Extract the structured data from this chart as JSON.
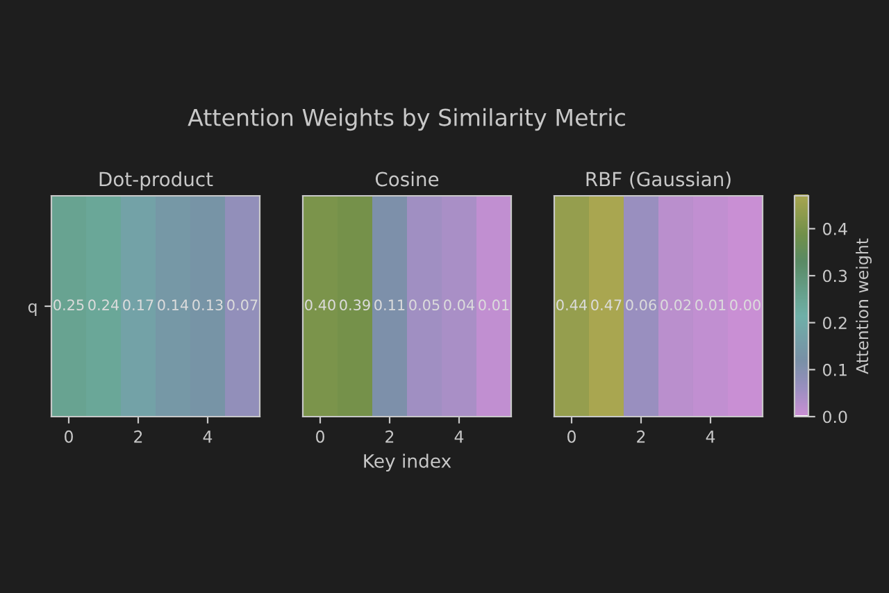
{
  "chart_data": [
    {
      "type": "heatmap",
      "subtitle": "Dot-product",
      "categories": [
        "0",
        null,
        "2",
        null,
        "4",
        null
      ],
      "y_categories": [
        "q"
      ],
      "cells": [
        [
          0.25,
          0.24,
          0.17,
          0.14,
          0.13,
          0.07
        ]
      ],
      "cell_labels": [
        [
          "0.25",
          "0.24",
          "0.17",
          "0.14",
          "0.13",
          "0.07"
        ]
      ]
    },
    {
      "type": "heatmap",
      "title": "Attention Weights by Similarity Metric",
      "subtitle": "Cosine",
      "xlabel": "Key index",
      "categories": [
        "0",
        null,
        "2",
        null,
        "4",
        null
      ],
      "y_categories": [
        null
      ],
      "cells": [
        [
          0.4,
          0.39,
          0.11,
          0.05,
          0.04,
          0.01
        ]
      ],
      "cell_labels": [
        [
          "0.40",
          "0.39",
          "0.11",
          "0.05",
          "0.04",
          "0.01"
        ]
      ]
    },
    {
      "type": "heatmap",
      "subtitle": "RBF (Gaussian)",
      "categories": [
        "0",
        null,
        "2",
        null,
        "4",
        null
      ],
      "y_categories": [
        null
      ],
      "cells": [
        [
          0.44,
          0.47,
          0.06,
          0.02,
          0.01,
          0.0
        ]
      ],
      "cell_labels": [
        [
          "0.44",
          "0.47",
          "0.06",
          "0.02",
          "0.01",
          "0.00"
        ]
      ],
      "clim": [
        0,
        0.47
      ],
      "clabel": "Attention weight",
      "cticks": [
        {
          "value": 0,
          "label": "0.0"
        },
        {
          "value": 0.1,
          "label": "0.1"
        },
        {
          "value": 0.2,
          "label": "0.2"
        },
        {
          "value": 0.3,
          "label": "0.3"
        },
        {
          "value": 0.4,
          "label": "0.4"
        }
      ]
    }
  ]
}
